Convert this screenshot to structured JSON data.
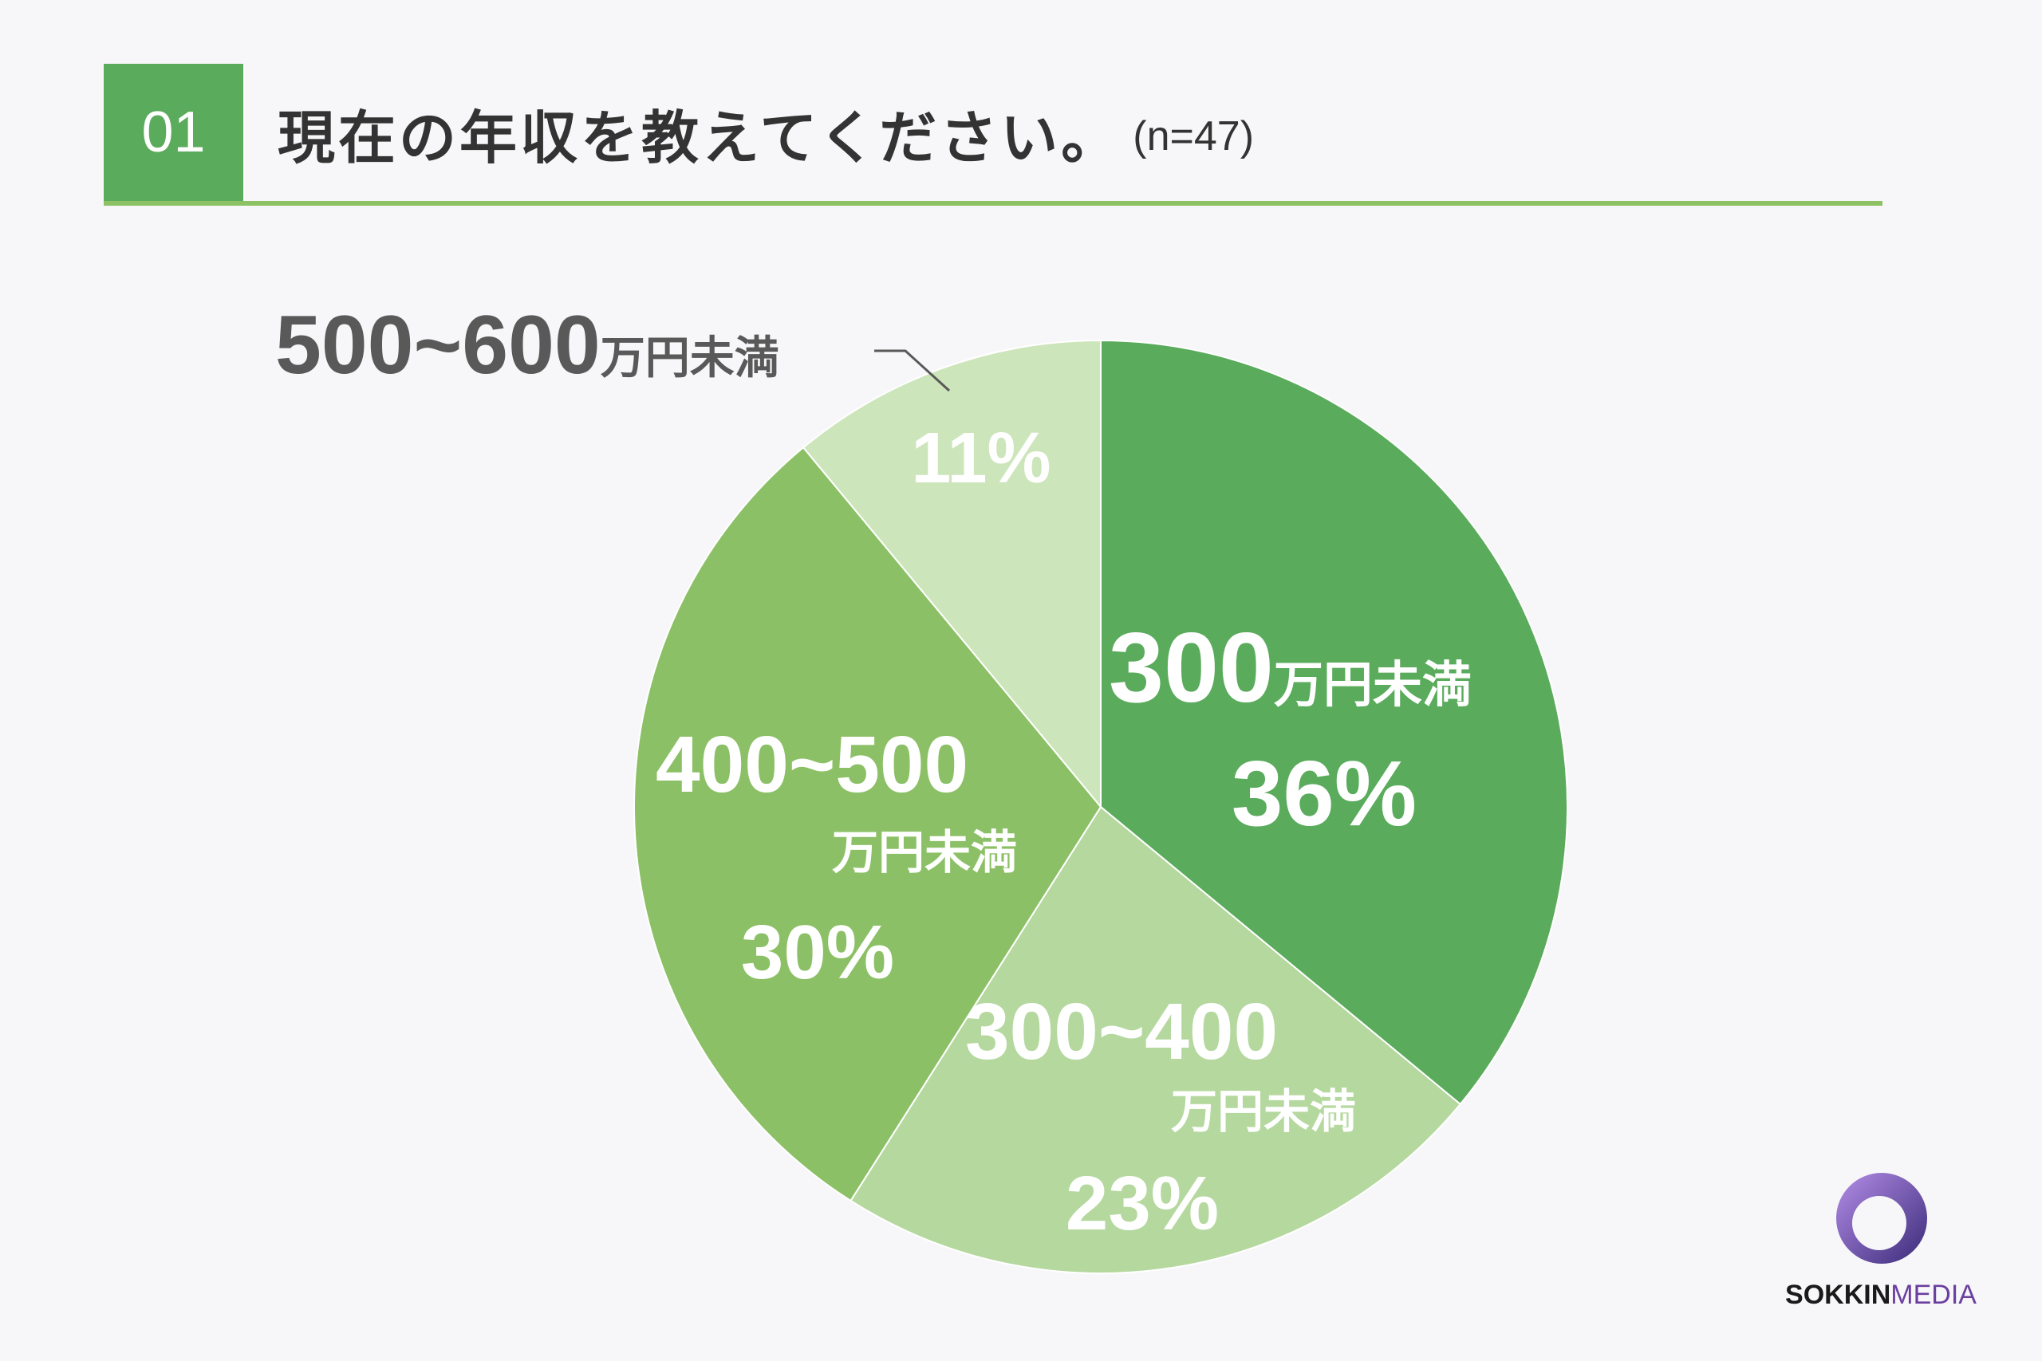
{
  "header": {
    "number": "01",
    "question": "現在の年収を教えてください。",
    "sample_size": "(n=47)"
  },
  "chart_data": {
    "type": "pie",
    "unit_suffix": "%",
    "slices": [
      {
        "range": "300",
        "unit": "万円未満",
        "value": 36,
        "percent_label": "36%",
        "color": "#5aab5c"
      },
      {
        "range": "300~400",
        "unit": "万円未満",
        "value": 23,
        "percent_label": "23%",
        "color": "#b5d89f"
      },
      {
        "range": "400~500",
        "unit": "万円未満",
        "value": 30,
        "percent_label": "30%",
        "color": "#8cc066"
      },
      {
        "range": "500~600",
        "unit": "万円未満",
        "value": 11,
        "percent_label": "11%",
        "color": "#cde5bb"
      }
    ]
  },
  "logo": {
    "part1": "SOKKIN",
    "part2": "MEDIA",
    "colors": {
      "ring_outer": "#7b4fc9",
      "ring_inner": "#3a2a78"
    }
  }
}
